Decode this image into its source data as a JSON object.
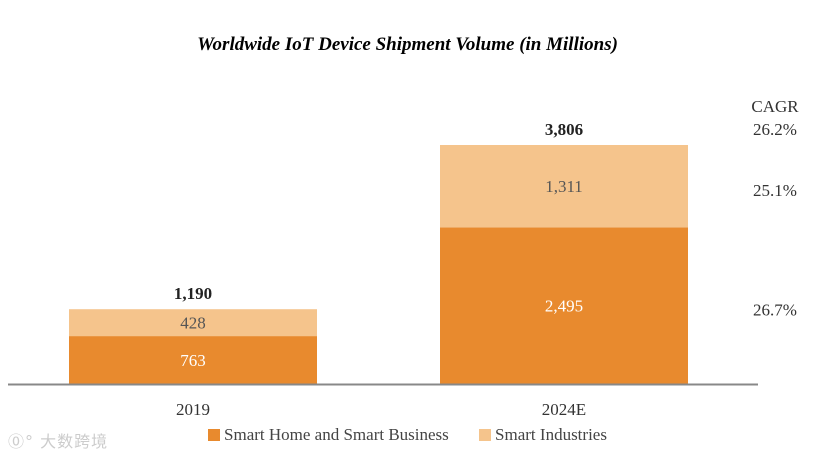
{
  "chart_data": {
    "type": "bar",
    "stacked": true,
    "title": "Worldwide IoT Device Shipment Volume (in Millions)",
    "categories": [
      "2019",
      "2024E"
    ],
    "series": [
      {
        "name": "Smart Home and Smart Business",
        "values": [
          763,
          2495
        ],
        "color": "#E88A2E",
        "label_color": "#ffffff"
      },
      {
        "name": "Smart Industries",
        "values": [
          428,
          1311
        ],
        "color": "#F5C48C",
        "label_color": "#555555"
      }
    ],
    "totals": [
      "1,190",
      "3,806"
    ],
    "total_values": [
      1190,
      3806
    ],
    "value_labels": [
      [
        "763",
        "2,495"
      ],
      [
        "428",
        "1,311"
      ]
    ],
    "cagr": {
      "header": "CAGR",
      "total": "26.2%",
      "series": [
        "26.7%",
        "25.1%"
      ]
    },
    "ylim": [
      0,
      3806
    ],
    "legend_position": "bottom",
    "grid": false
  },
  "watermark": "②° 大数跨境"
}
